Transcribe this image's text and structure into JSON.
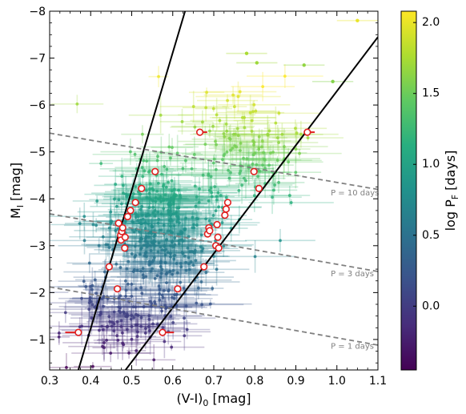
{
  "chart_data": {
    "type": "scatter",
    "xlabel": "(V-I)",
    "xlabel_sub": "0",
    "xlabel_unit": " [mag]",
    "ylabel": "M",
    "ylabel_sub": "I",
    "ylabel_unit": " [mag]",
    "xlim": [
      0.3,
      1.1
    ],
    "ylim": [
      -0.35,
      -8.0
    ],
    "y_inverted": true,
    "grid": false,
    "x_ticks": [
      0.3,
      0.4,
      0.5,
      0.6,
      0.7,
      0.8,
      0.9,
      1.0,
      1.1
    ],
    "x_tick_labels": [
      "0.3",
      "0.4",
      "0.5",
      "0.6",
      "0.7",
      "0.8",
      "0.9",
      "1.0",
      "1.1"
    ],
    "y_ticks": [
      -1,
      -2,
      -3,
      -4,
      -5,
      -6,
      -7,
      -8
    ],
    "y_tick_labels": [
      "−1",
      "−2",
      "−3",
      "−4",
      "−5",
      "−6",
      "−7",
      "−8"
    ],
    "colorbar": {
      "label": "log P",
      "label_sub": "F",
      "label_unit": " [days]",
      "range": [
        -0.45,
        2.08
      ],
      "ticks": [
        0.0,
        0.5,
        1.0,
        1.5,
        2.0
      ],
      "tick_labels": [
        "0.0",
        "0.5",
        "1.0",
        "1.5",
        "2.0"
      ],
      "colormap": "viridis"
    },
    "instability_strip_edges": [
      {
        "name": "blue edge",
        "points": [
          [
            0.37,
            -0.35
          ],
          [
            0.63,
            -8.0
          ]
        ],
        "color": "#000000"
      },
      {
        "name": "red edge",
        "points": [
          [
            0.485,
            -0.35
          ],
          [
            1.1,
            -7.45
          ]
        ],
        "color": "#000000"
      }
    ],
    "period_lines": [
      {
        "label": "P = 10 days",
        "points": [
          [
            0.3,
            -5.4
          ],
          [
            1.1,
            -4.2
          ]
        ],
        "label_at": [
          0.985,
          -4.07
        ]
      },
      {
        "label": "P = 3 days",
        "points": [
          [
            0.3,
            -3.68
          ],
          [
            1.1,
            -2.45
          ]
        ],
        "label_at": [
          0.985,
          -2.35
        ]
      },
      {
        "label": "P = 1 days",
        "points": [
          [
            0.3,
            -2.12
          ],
          [
            1.1,
            -0.88
          ]
        ],
        "label_at": [
          0.985,
          -0.8
        ]
      }
    ],
    "highlighted_points": [
      {
        "x": 0.445,
        "y": -2.55
      },
      {
        "x": 0.465,
        "y": -2.08
      },
      {
        "x": 0.468,
        "y": -3.48
      },
      {
        "x": 0.473,
        "y": -3.22
      },
      {
        "x": 0.474,
        "y": -3.12
      },
      {
        "x": 0.476,
        "y": -3.3
      },
      {
        "x": 0.478,
        "y": -3.38
      },
      {
        "x": 0.483,
        "y": -2.95
      },
      {
        "x": 0.484,
        "y": -3.18
      },
      {
        "x": 0.49,
        "y": -3.62
      },
      {
        "x": 0.497,
        "y": -3.75
      },
      {
        "x": 0.509,
        "y": -3.92
      },
      {
        "x": 0.524,
        "y": -4.22
      },
      {
        "x": 0.557,
        "y": -4.58
      },
      {
        "x": 0.612,
        "y": -2.08
      },
      {
        "x": 0.666,
        "y": -5.42
      },
      {
        "x": 0.676,
        "y": -2.55
      },
      {
        "x": 0.685,
        "y": -3.25
      },
      {
        "x": 0.688,
        "y": -3.38
      },
      {
        "x": 0.69,
        "y": -3.32
      },
      {
        "x": 0.705,
        "y": -3.0
      },
      {
        "x": 0.708,
        "y": -3.45
      },
      {
        "x": 0.71,
        "y": -3.18
      },
      {
        "x": 0.712,
        "y": -2.95
      },
      {
        "x": 0.727,
        "y": -3.65
      },
      {
        "x": 0.73,
        "y": -3.78
      },
      {
        "x": 0.734,
        "y": -3.92
      },
      {
        "x": 0.798,
        "y": -4.58
      },
      {
        "x": 0.81,
        "y": -4.22
      },
      {
        "x": 0.928,
        "y": -5.42
      },
      {
        "x": 0.37,
        "y": -1.15
      },
      {
        "x": 0.575,
        "y": -1.15
      }
    ],
    "highlight_arrows": [
      {
        "x": 0.666,
        "y": -5.42,
        "dx": 0.018
      },
      {
        "x": 0.928,
        "y": -5.42,
        "dx": 0.018
      },
      {
        "x": 0.37,
        "y": -1.15,
        "dx": -0.032
      },
      {
        "x": 0.575,
        "y": -1.15,
        "dx": 0.028
      }
    ],
    "sample_clouds": [
      {
        "name": "main cloud",
        "cx": 0.57,
        "cy": -3.4,
        "sx": 0.075,
        "sy": 0.75,
        "count": 420
      },
      {
        "name": "upper branch",
        "cx": 0.78,
        "cy": -5.0,
        "sx": 0.06,
        "sy": 0.6,
        "count": 130
      },
      {
        "name": "faint tail",
        "cx": 0.48,
        "cy": -1.5,
        "sx": 0.07,
        "sy": 0.45,
        "count": 140
      }
    ],
    "bright_points": [
      {
        "x": 1.05,
        "y": -7.8,
        "logP": 2.0
      },
      {
        "x": 0.78,
        "y": -7.1,
        "logP": 1.75
      },
      {
        "x": 0.805,
        "y": -6.9,
        "logP": 1.7
      },
      {
        "x": 0.92,
        "y": -6.85,
        "logP": 1.65
      },
      {
        "x": 0.99,
        "y": -6.5,
        "logP": 1.6
      }
    ]
  }
}
